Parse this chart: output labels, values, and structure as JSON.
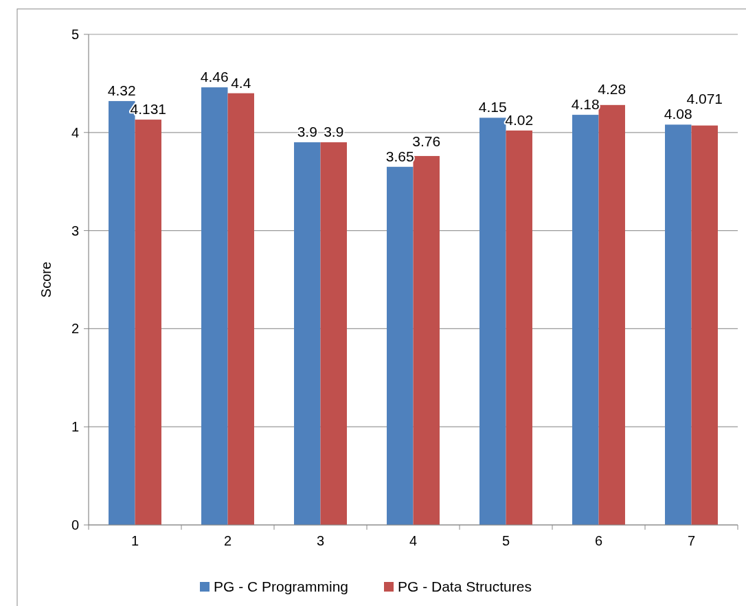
{
  "chart_data": {
    "type": "bar",
    "ylabel": "Score",
    "categories": [
      "1",
      "2",
      "3",
      "4",
      "5",
      "6",
      "7"
    ],
    "series": [
      {
        "name": "PG - C Programming",
        "color": "#4f81bd",
        "values": [
          4.32,
          4.46,
          3.9,
          3.65,
          4.15,
          4.18,
          4.08
        ]
      },
      {
        "name": "PG - Data Structures",
        "color": "#c0504d",
        "values": [
          4.131,
          4.4,
          3.9,
          3.76,
          4.02,
          4.28,
          4.071
        ]
      }
    ],
    "ylim": [
      0,
      5
    ],
    "yticks": [
      0,
      1,
      2,
      3,
      4,
      5
    ],
    "grid": "y",
    "legend": "bottom",
    "data_labels": true
  }
}
